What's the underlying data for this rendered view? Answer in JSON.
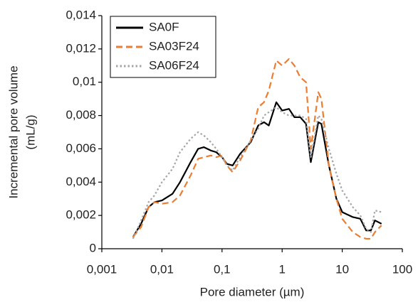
{
  "chart_data": {
    "type": "line",
    "x_label": "Pore diameter (µm)",
    "y_label": [
      "Incremental pore volume",
      "(mL/g)"
    ],
    "log_x": true,
    "grid": false,
    "legend": "upper left",
    "x": [
      0.0033,
      0.0045,
      0.006,
      0.0075,
      0.01,
      0.015,
      0.02,
      0.03,
      0.04,
      0.05,
      0.065,
      0.08,
      0.1,
      0.12,
      0.15,
      0.2,
      0.3,
      0.4,
      0.5,
      0.6,
      0.8,
      1.0,
      1.3,
      1.6,
      2,
      2.5,
      3,
      4,
      4.5,
      6,
      8,
      10,
      15,
      20,
      25,
      30,
      35,
      45
    ],
    "series": [
      {
        "name": "SA0F",
        "color": "#000000",
        "dash": "solid",
        "values": [
          0.0007,
          0.0015,
          0.0025,
          0.0028,
          0.0029,
          0.0033,
          0.004,
          0.0052,
          0.006,
          0.0061,
          0.0059,
          0.0058,
          0.0055,
          0.0051,
          0.005,
          0.0057,
          0.0064,
          0.0074,
          0.0076,
          0.0074,
          0.0088,
          0.0083,
          0.0084,
          0.0079,
          0.0079,
          0.0075,
          0.0052,
          0.0076,
          0.0075,
          0.005,
          0.003,
          0.0022,
          0.0019,
          0.0018,
          0.0011,
          0.0011,
          0.0017,
          0.0015
        ]
      },
      {
        "name": "SA03F24",
        "color": "#ed7d31",
        "dash": "dashed",
        "values": [
          0.0007,
          0.0013,
          0.0025,
          0.0028,
          0.0027,
          0.0028,
          0.0032,
          0.0044,
          0.0054,
          0.0055,
          0.0056,
          0.0055,
          0.0056,
          0.005,
          0.0046,
          0.0053,
          0.0065,
          0.0085,
          0.0088,
          0.0095,
          0.0113,
          0.011,
          0.0114,
          0.011,
          0.0103,
          0.01,
          0.006,
          0.0094,
          0.009,
          0.005,
          0.003,
          0.0018,
          0.001,
          0.0007,
          0.0006,
          0.0006,
          0.001,
          0.0014
        ]
      },
      {
        "name": "SA06F24",
        "color": "#a6a6a6",
        "dash": "dotted",
        "values": [
          0.0006,
          0.0017,
          0.0028,
          0.0032,
          0.004,
          0.0048,
          0.0058,
          0.0066,
          0.007,
          0.0068,
          0.0064,
          0.006,
          0.0055,
          0.005,
          0.0047,
          0.0055,
          0.0065,
          0.0072,
          0.008,
          0.0082,
          0.0085,
          0.0082,
          0.008,
          0.008,
          0.008,
          0.0078,
          0.0055,
          0.008,
          0.0078,
          0.006,
          0.0045,
          0.0035,
          0.0025,
          0.002,
          0.0012,
          0.001,
          0.0023,
          0.0022
        ]
      }
    ],
    "xlim": [
      0.001,
      100
    ],
    "xticks": [
      {
        "value": 0.001,
        "label": "0,001"
      },
      {
        "value": 0.01,
        "label": "0,01"
      },
      {
        "value": 0.1,
        "label": "0,1"
      },
      1,
      10,
      100
    ],
    "ylim": [
      0,
      0.014
    ],
    "yticks": [
      0,
      {
        "value": 0.002,
        "label": "0,002"
      },
      {
        "value": 0.004,
        "label": "0,004"
      },
      {
        "value": 0.006,
        "label": "0,006"
      },
      {
        "value": 0.008,
        "label": "0,008"
      },
      {
        "value": 0.01,
        "label": "0,01"
      },
      {
        "value": 0.012,
        "label": "0,012"
      },
      {
        "value": 0.014,
        "label": "0,014"
      }
    ]
  }
}
